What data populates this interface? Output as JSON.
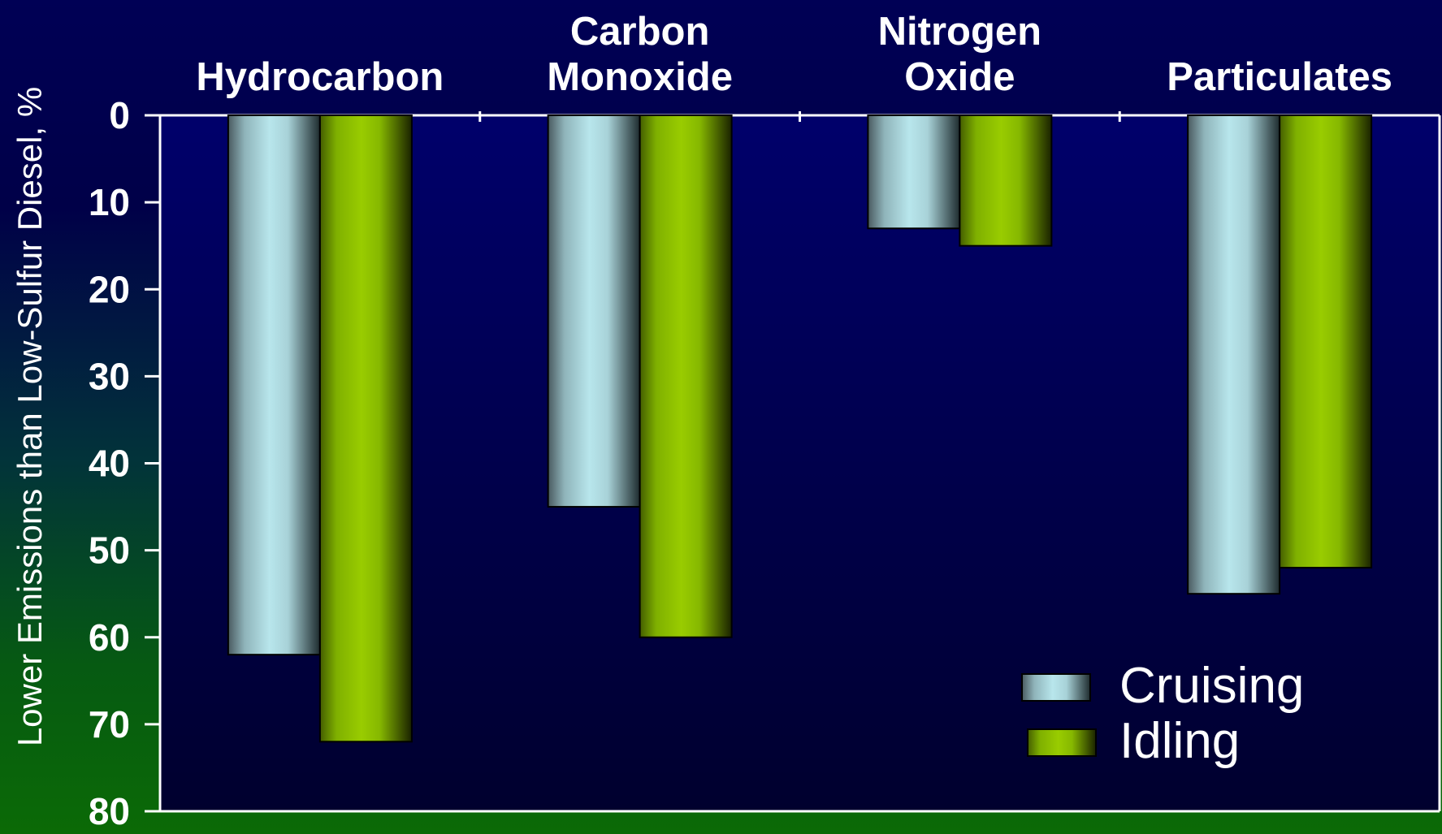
{
  "chart_data": {
    "type": "bar",
    "categories": [
      "Hydrocarbon",
      "Carbon Monoxide",
      "Nitrogen Oxide",
      "Particulates"
    ],
    "category_label_lines": [
      [
        "Hydrocarbon"
      ],
      [
        "Carbon",
        "Monoxide"
      ],
      [
        "Nitrogen",
        "Oxide"
      ],
      [
        "Particulates"
      ]
    ],
    "series": [
      {
        "name": "Cruising",
        "values": [
          62,
          45,
          13,
          55
        ],
        "color": "#b8e6ec"
      },
      {
        "name": "Idling",
        "values": [
          72,
          60,
          15,
          52
        ],
        "color": "#99cc00"
      }
    ],
    "ylabel": "Lower Emissions than Low-Sulfur Diesel, %",
    "ylim": [
      0,
      80
    ],
    "y_axis_inverted": true,
    "yticks": [
      0,
      10,
      20,
      30,
      40,
      50,
      60,
      70,
      80
    ],
    "grid": false,
    "legend_position": "bottom-right",
    "background_colors": {
      "top": "#000055",
      "bottom": "#0b6a06",
      "plot_area": "#00002e"
    }
  }
}
